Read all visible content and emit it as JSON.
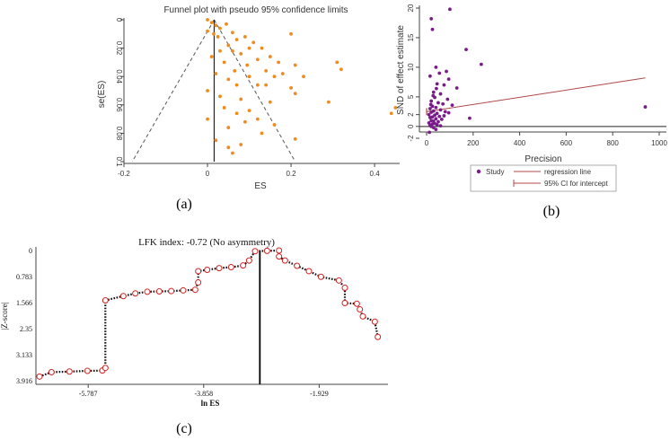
{
  "panel_labels": {
    "a": "(a)",
    "b": "(b)",
    "c": "(c)"
  },
  "chart_data": [
    {
      "type": "scatter",
      "title": "Funnel plot with pseudo 95% confidence limits",
      "xlabel": "ES",
      "ylabel": "se(ES)",
      "xlim": [
        -0.2,
        0.46
      ],
      "ylim": [
        0,
        0.1
      ],
      "y_reversed": true,
      "xticks": [
        "-0.2",
        "0",
        "0.2",
        "0.4"
      ],
      "yticks": [
        "0",
        "0.02",
        "0.04",
        "0.06",
        "0.08",
        "0.1"
      ],
      "point_color": "#f08a1c",
      "pooled_estimate": 0.016,
      "pseudo_ci_limits": [
        [
          0.016,
          0
        ],
        [
          -0.18,
          0.1
        ],
        [
          0.21,
          0.1
        ]
      ],
      "points": [
        [
          0.0,
          0.0
        ],
        [
          0.01,
          0.002
        ],
        [
          0.02,
          0.004
        ],
        [
          0.03,
          0.006
        ],
        [
          0.0,
          0.008
        ],
        [
          0.015,
          0.01
        ],
        [
          0.045,
          0.003
        ],
        [
          0.06,
          0.009
        ],
        [
          0.025,
          0.012
        ],
        [
          0.07,
          0.014
        ],
        [
          0.09,
          0.012
        ],
        [
          0.11,
          0.016
        ],
        [
          0.05,
          0.018
        ],
        [
          0.13,
          0.02
        ],
        [
          0.03,
          0.022
        ],
        [
          0.08,
          0.024
        ],
        [
          0.01,
          0.026
        ],
        [
          0.12,
          0.028
        ],
        [
          0.15,
          0.026
        ],
        [
          0.17,
          0.03
        ],
        [
          0.04,
          0.03
        ],
        [
          0.095,
          0.032
        ],
        [
          0.2,
          0.01
        ],
        [
          0.21,
          0.032
        ],
        [
          0.065,
          0.036
        ],
        [
          0.14,
          0.036
        ],
        [
          0.02,
          0.038
        ],
        [
          0.18,
          0.038
        ],
        [
          0.1,
          0.04
        ],
        [
          0.23,
          0.04
        ],
        [
          0.05,
          0.042
        ],
        [
          0.31,
          0.03
        ],
        [
          0.32,
          0.035
        ],
        [
          0.07,
          0.046
        ],
        [
          0.12,
          0.046
        ],
        [
          0.2,
          0.048
        ],
        [
          0.21,
          0.052
        ],
        [
          0.0,
          0.05
        ],
        [
          0.03,
          0.054
        ],
        [
          0.08,
          0.056
        ],
        [
          0.15,
          0.058
        ],
        [
          0.29,
          0.058
        ],
        [
          0.04,
          0.062
        ],
        [
          0.1,
          0.064
        ],
        [
          0.44,
          0.066
        ],
        [
          0.45,
          0.062
        ],
        [
          0.07,
          0.066
        ],
        [
          0.12,
          0.07
        ],
        [
          0.0,
          0.07
        ],
        [
          0.09,
          0.072
        ],
        [
          0.16,
          0.074
        ],
        [
          0.05,
          0.076
        ],
        [
          0.13,
          0.08
        ],
        [
          0.02,
          0.085
        ],
        [
          0.08,
          0.088
        ],
        [
          0.21,
          0.084
        ],
        [
          0.05,
          0.09
        ],
        [
          0.06,
          0.094
        ],
        [
          0.14,
          0.046
        ],
        [
          0.16,
          0.04
        ],
        [
          0.06,
          0.022
        ],
        [
          0.1,
          0.02
        ]
      ]
    },
    {
      "type": "scatter",
      "xlabel": "Precision",
      "ylabel": "SND of effect estimate",
      "xlim": [
        0,
        1000
      ],
      "ylim": [
        -2,
        20
      ],
      "xticks": [
        "0",
        "200",
        "400",
        "600",
        "800",
        "1000"
      ],
      "yticks": [
        "-2",
        "0",
        "2",
        "5",
        "10",
        "15",
        "20"
      ],
      "point_color": "#7a1b8a",
      "regression_line": {
        "x": [
          0,
          940
        ],
        "y": [
          2.5,
          8.2
        ],
        "color": "#b04848"
      },
      "ci_intercept": [
        1.9,
        3.1
      ],
      "legend": {
        "placement": "bottom",
        "items": [
          "Study",
          "regression line",
          "95% CI for intercept"
        ]
      },
      "points": [
        [
          100,
          19.8
        ],
        [
          20,
          18.2
        ],
        [
          25,
          16.4
        ],
        [
          170,
          13.0
        ],
        [
          235,
          10.5
        ],
        [
          40,
          10.0
        ],
        [
          85,
          9.3
        ],
        [
          55,
          9.0
        ],
        [
          15,
          8.5
        ],
        [
          95,
          8.0
        ],
        [
          45,
          7.2
        ],
        [
          75,
          7.0
        ],
        [
          130,
          6.5
        ],
        [
          30,
          5.8
        ],
        [
          60,
          5.5
        ],
        [
          35,
          4.9
        ],
        [
          90,
          4.6
        ],
        [
          20,
          4.3
        ],
        [
          50,
          4.0
        ],
        [
          70,
          3.8
        ],
        [
          110,
          3.6
        ],
        [
          25,
          3.4
        ],
        [
          40,
          3.2
        ],
        [
          15,
          3.0
        ],
        [
          60,
          2.8
        ],
        [
          30,
          2.6
        ],
        [
          80,
          2.5
        ],
        [
          20,
          2.4
        ],
        [
          45,
          2.2
        ],
        [
          10,
          2.0
        ],
        [
          35,
          1.9
        ],
        [
          55,
          1.7
        ],
        [
          25,
          1.6
        ],
        [
          15,
          1.5
        ],
        [
          40,
          1.3
        ],
        [
          65,
          1.2
        ],
        [
          20,
          1.0
        ],
        [
          30,
          0.9
        ],
        [
          50,
          0.8
        ],
        [
          10,
          0.6
        ],
        [
          35,
          0.5
        ],
        [
          25,
          0.4
        ],
        [
          45,
          0.3
        ],
        [
          15,
          0.2
        ],
        [
          60,
          0.1
        ],
        [
          20,
          0.0
        ],
        [
          30,
          -0.2
        ],
        [
          40,
          -0.5
        ],
        [
          185,
          1.4
        ],
        [
          940,
          3.3
        ],
        [
          75,
          1.8
        ],
        [
          95,
          2.3
        ],
        [
          18,
          3.7
        ],
        [
          28,
          5.2
        ],
        [
          42,
          6.4
        ],
        [
          12,
          -1.0
        ]
      ]
    },
    {
      "type": "line",
      "title": "LFK index: -0.72 (No asymmetry)",
      "xlabel": "ln ES",
      "ylabel": "|Z-score|",
      "xlim": [
        -6.6,
        -0.9
      ],
      "ylim": [
        0,
        3.916
      ],
      "y_reversed": true,
      "xticks": [
        "-5.787",
        "-3.858",
        "-1.929"
      ],
      "yticks": [
        "0",
        "0.783",
        "1.566",
        "2.35",
        "3.133",
        "3.916"
      ],
      "vertical_line_x": -2.92,
      "marker_color": "#d42020",
      "points": [
        [
          -6.6,
          3.79
        ],
        [
          -6.4,
          3.66
        ],
        [
          -6.1,
          3.64
        ],
        [
          -5.8,
          3.62
        ],
        [
          -5.55,
          3.61
        ],
        [
          -5.5,
          3.53
        ],
        [
          -5.5,
          1.5
        ],
        [
          -5.2,
          1.37
        ],
        [
          -5.0,
          1.29
        ],
        [
          -4.8,
          1.24
        ],
        [
          -4.6,
          1.23
        ],
        [
          -4.4,
          1.22
        ],
        [
          -4.2,
          1.2
        ],
        [
          -4.0,
          1.18
        ],
        [
          -3.95,
          0.96
        ],
        [
          -3.95,
          0.62
        ],
        [
          -3.8,
          0.58
        ],
        [
          -3.6,
          0.53
        ],
        [
          -3.4,
          0.5
        ],
        [
          -3.2,
          0.45
        ],
        [
          -3.1,
          0.3
        ],
        [
          -3.0,
          0.02
        ],
        [
          -2.8,
          0.01
        ],
        [
          -2.6,
          0.0
        ],
        [
          -2.6,
          0.18
        ],
        [
          -2.5,
          0.3
        ],
        [
          -2.3,
          0.46
        ],
        [
          -2.1,
          0.62
        ],
        [
          -1.9,
          0.79
        ],
        [
          -1.6,
          0.9
        ],
        [
          -1.5,
          1.12
        ],
        [
          -1.5,
          1.58
        ],
        [
          -1.3,
          1.6
        ],
        [
          -1.25,
          1.77
        ],
        [
          -1.2,
          1.98
        ],
        [
          -1.0,
          2.14
        ],
        [
          -0.95,
          2.6
        ]
      ]
    }
  ]
}
